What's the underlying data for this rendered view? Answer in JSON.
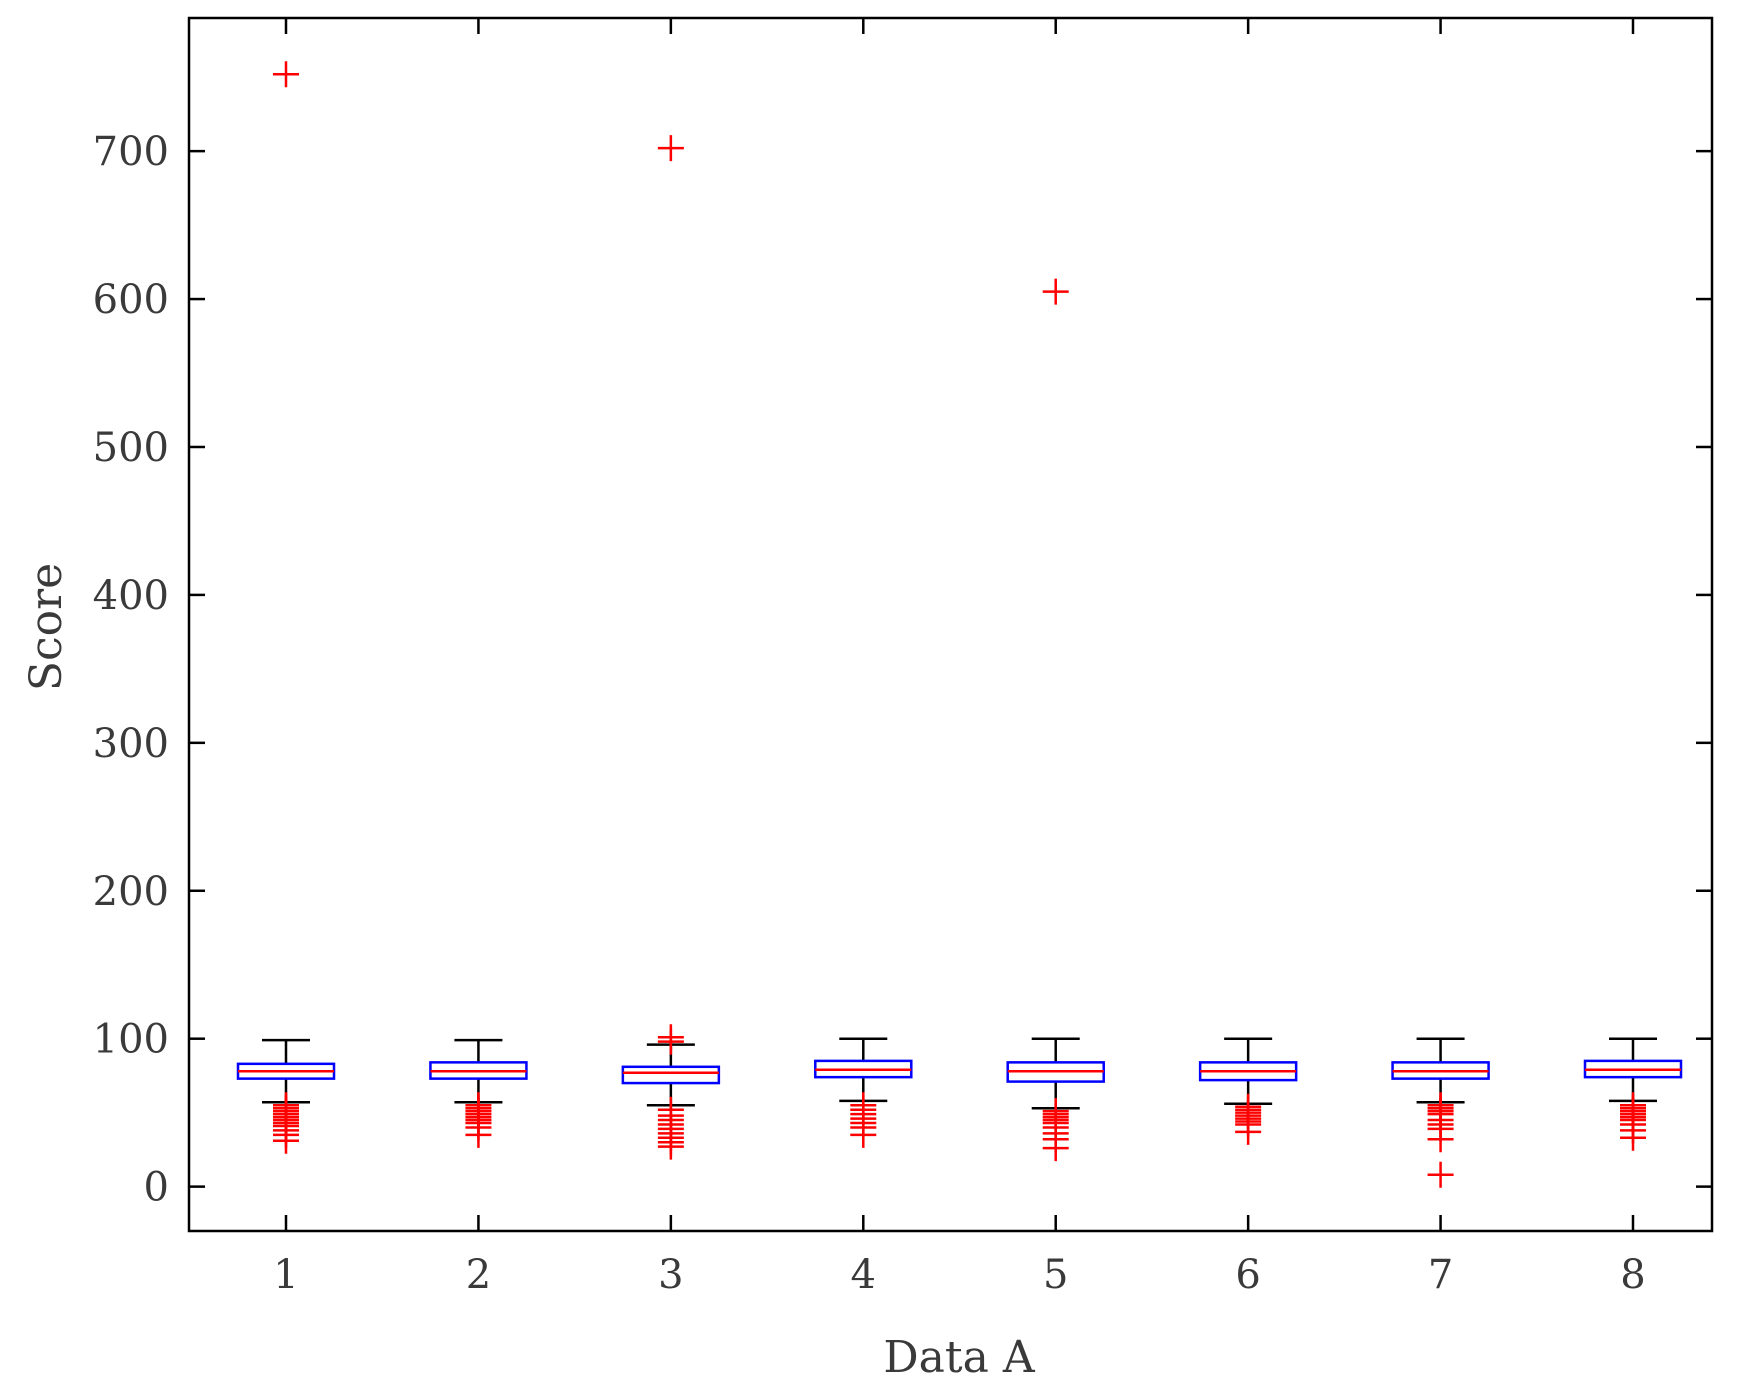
{
  "chart_data": {
    "type": "boxplot",
    "title": "",
    "xlabel": "Data A",
    "ylabel": "Score",
    "ylim": [
      -30,
      790
    ],
    "yticks": [
      0,
      100,
      200,
      300,
      400,
      500,
      600,
      700
    ],
    "categories": [
      "1",
      "2",
      "3",
      "4",
      "5",
      "6",
      "7",
      "8"
    ],
    "grid": false,
    "colors": {
      "box": "#0000ff",
      "median": "#ff0000",
      "whisker": "#000000",
      "outlier": "#ff0000",
      "axis": "#000000"
    },
    "boxes": [
      {
        "category": "1",
        "whisker_low": 57,
        "q1": 73,
        "median": 78,
        "q3": 83,
        "whisker_high": 99,
        "outliers": [
          752,
          55,
          53,
          51,
          49,
          47,
          45,
          43,
          41,
          38,
          35,
          31
        ]
      },
      {
        "category": "2",
        "whisker_low": 57,
        "q1": 73,
        "median": 78,
        "q3": 84,
        "whisker_high": 99,
        "outliers": [
          55,
          53,
          51,
          49,
          47,
          45,
          43,
          40,
          35
        ]
      },
      {
        "category": "3",
        "whisker_low": 55,
        "q1": 70,
        "median": 77,
        "q3": 81,
        "whisker_high": 96,
        "outliers": [
          702,
          101,
          98,
          52,
          48,
          45,
          42,
          39,
          36,
          33,
          30,
          27
        ]
      },
      {
        "category": "4",
        "whisker_low": 58,
        "q1": 74,
        "median": 79,
        "q3": 85,
        "whisker_high": 100,
        "outliers": [
          55,
          52,
          49,
          46,
          43,
          40,
          35
        ]
      },
      {
        "category": "5",
        "whisker_low": 53,
        "q1": 71,
        "median": 78,
        "q3": 84,
        "whisker_high": 100,
        "outliers": [
          605,
          51,
          49,
          47,
          45,
          43,
          40,
          36,
          32,
          26
        ]
      },
      {
        "category": "6",
        "whisker_low": 56,
        "q1": 72,
        "median": 78,
        "q3": 84,
        "whisker_high": 100,
        "outliers": [
          54,
          52,
          50,
          48,
          46,
          44,
          42,
          37
        ]
      },
      {
        "category": "7",
        "whisker_low": 57,
        "q1": 73,
        "median": 78,
        "q3": 84,
        "whisker_high": 100,
        "outliers": [
          55,
          53,
          51,
          49,
          45,
          42,
          39,
          32,
          8
        ]
      },
      {
        "category": "8",
        "whisker_low": 58,
        "q1": 74,
        "median": 79,
        "q3": 85,
        "whisker_high": 100,
        "outliers": [
          55,
          53,
          51,
          49,
          47,
          45,
          42,
          38,
          33
        ]
      }
    ]
  }
}
